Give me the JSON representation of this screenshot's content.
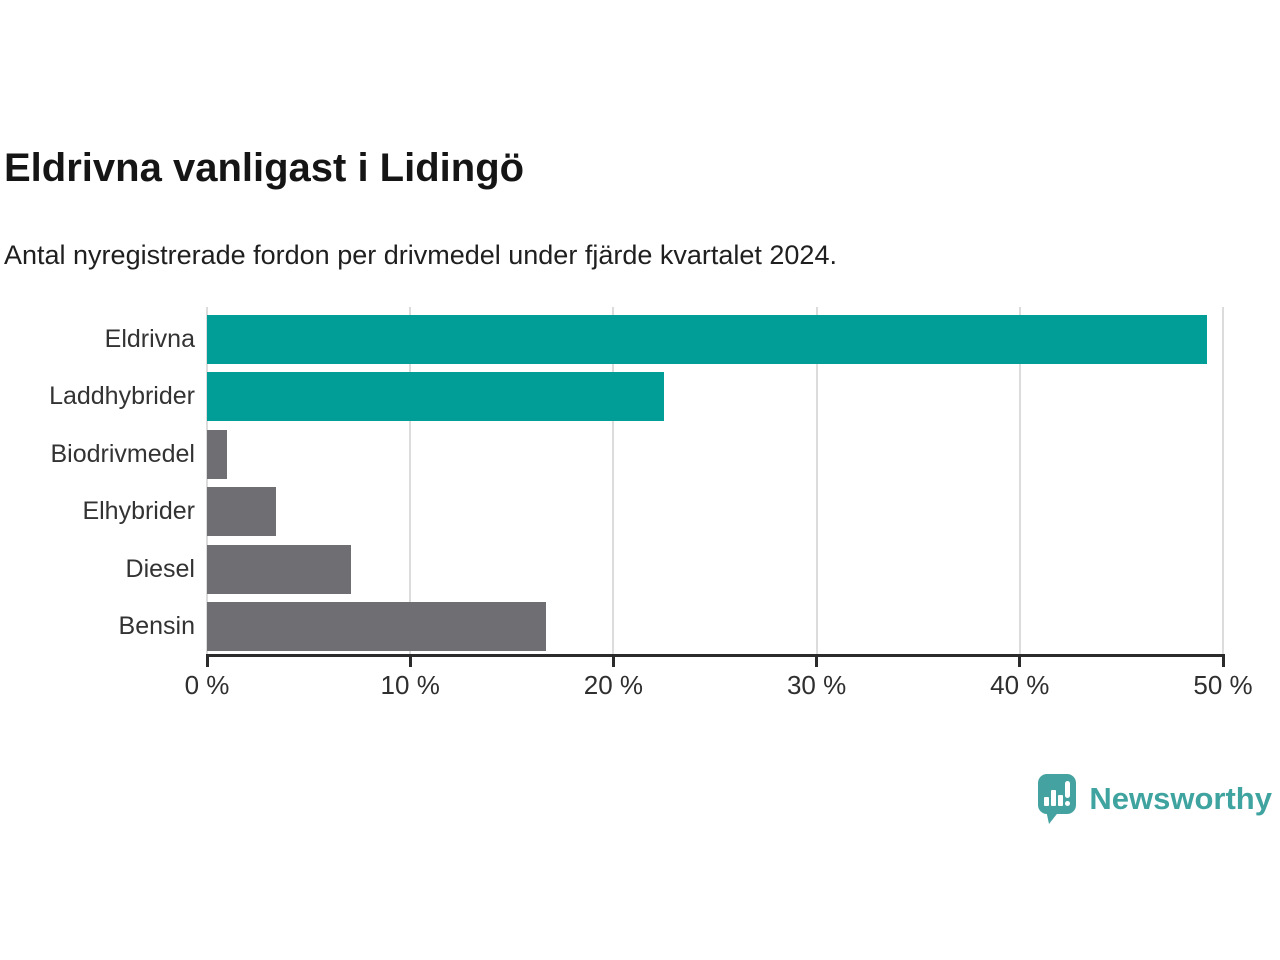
{
  "chart_data": {
    "type": "bar",
    "orientation": "horizontal",
    "title": "Eldrivna vanligast i Lidingö",
    "subtitle": "Antal nyregistrerade fordon per drivmedel under fjärde kvartalet 2024.",
    "categories": [
      "Eldrivna",
      "Laddhybrider",
      "Biodrivmedel",
      "Elhybrider",
      "Diesel",
      "Bensin"
    ],
    "values": [
      49.2,
      22.5,
      1.0,
      3.4,
      7.1,
      16.7
    ],
    "unit": "%",
    "bar_colors": [
      "#009E96",
      "#009E96",
      "#6E6E73",
      "#6E6E73",
      "#6E6E73",
      "#6E6E73"
    ],
    "xlim": [
      0,
      50
    ],
    "x_ticks": [
      0,
      10,
      20,
      30,
      40,
      50
    ],
    "x_tick_labels": [
      "0 %",
      "10 %",
      "20 %",
      "30 %",
      "40 %",
      "50 %"
    ],
    "grid": "vertical",
    "legend": "none"
  },
  "colors": {
    "accent_teal": "#009E96",
    "neutral_gray": "#6E6E73",
    "gridline": "#dcdcdc",
    "axis": "#2b2b2b"
  },
  "footer": {
    "brand": "Newsworthy",
    "brand_color": "#3FA3A0",
    "logo_color": "#44A3A0"
  }
}
